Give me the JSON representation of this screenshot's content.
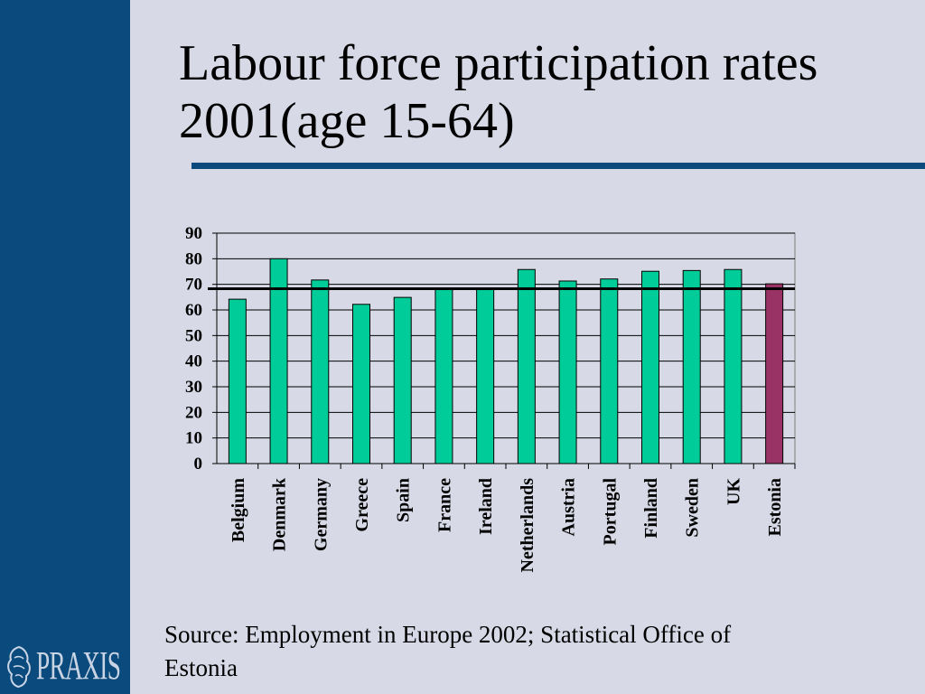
{
  "slide": {
    "title": "Labour force participation rates 2001(age 15-64)",
    "source": "Source: Employment in Europe 2002; Statistical Office of Estonia",
    "logo_text": "PRAXIS"
  },
  "colors": {
    "sidebar": "#0a4a7c",
    "background": "#d7dae6",
    "bar": "#00cc99",
    "highlight_bar": "#993366",
    "reference_line": "#000000"
  },
  "chart_data": {
    "type": "bar",
    "title": "",
    "xlabel": "",
    "ylabel": "",
    "categories": [
      "Belgium",
      "Denmark",
      "Germany",
      "Greece",
      "Spain",
      "France",
      "Ireland",
      "Netherlands",
      "Austria",
      "Portugal",
      "Finland",
      "Sweden",
      "UK",
      "Estonia"
    ],
    "values": [
      64.2,
      80.0,
      71.7,
      62.2,
      64.9,
      68.1,
      68.2,
      75.8,
      71.3,
      72.1,
      75.1,
      75.4,
      75.8,
      70.2
    ],
    "highlight": "Estonia",
    "reference_line": 68.3,
    "ylim": [
      0,
      90
    ],
    "yticks": [
      0,
      10,
      20,
      30,
      40,
      50,
      60,
      70,
      80,
      90
    ],
    "grid": true,
    "legend": "none"
  }
}
